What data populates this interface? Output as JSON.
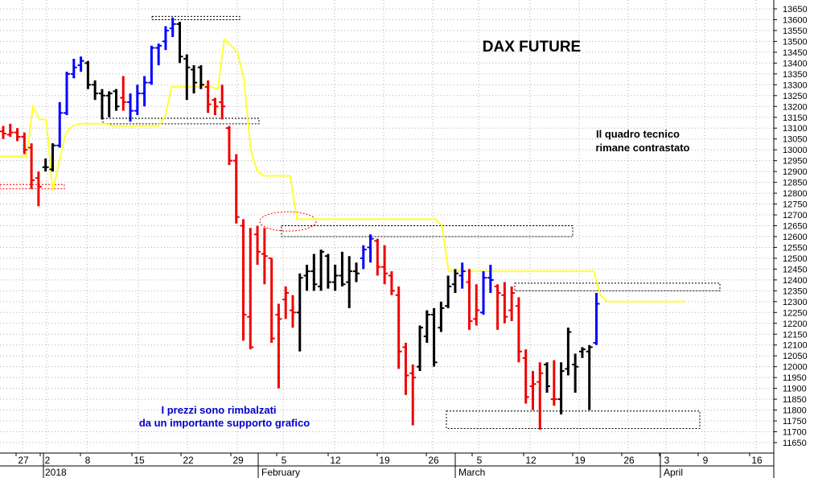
{
  "chart_data": {
    "type": "ohlc",
    "title": "DAX FUTURE",
    "annotations": {
      "top_right": [
        "Il quadro tecnico",
        "rimane contrastato"
      ],
      "bottom_left": [
        "I prezzi sono rimbalzati",
        "da un importante supporto grafico"
      ]
    },
    "y_axis": {
      "position": "right",
      "min": 11650,
      "max": 13650,
      "step": 50,
      "ticks": [
        "13650",
        "13600",
        "13550",
        "13500",
        "13450",
        "13400",
        "13350",
        "13300",
        "13250",
        "13200",
        "13150",
        "13100",
        "13050",
        "13000",
        "12950",
        "12900",
        "12850",
        "12800",
        "12750",
        "12700",
        "12650",
        "12600",
        "12550",
        "12500",
        "12450",
        "12400",
        "12350",
        "12300",
        "12250",
        "12200",
        "12150",
        "12100",
        "12050",
        "12000",
        "11950",
        "11900",
        "11850",
        "11800",
        "11750",
        "11700",
        "11650"
      ]
    },
    "x_axis": {
      "day_ticks": [
        "27",
        "2",
        "8",
        "15",
        "22",
        "29",
        "5",
        "12",
        "19",
        "26",
        "5",
        "12",
        "19",
        "26",
        "3",
        "9",
        "16"
      ],
      "month_labels": [
        "2018",
        "February",
        "March",
        "April"
      ]
    },
    "colors": {
      "up": "#0000ff",
      "down": "#ee0000",
      "neutral": "#000000",
      "moving_line": "#ffff33",
      "grid": "#b0b0b0",
      "box": "#000000",
      "ellipse": "#ff0000",
      "note": "#0000cc"
    },
    "bars": [
      {
        "c": "r",
        "o": 13085,
        "h": 13110,
        "l": 13050,
        "cl": 13075
      },
      {
        "c": "r",
        "o": 13070,
        "h": 13120,
        "l": 13060,
        "cl": 13080
      },
      {
        "c": "r",
        "o": 13080,
        "h": 13100,
        "l": 13040,
        "cl": 13060
      },
      {
        "c": "r",
        "o": 13060,
        "h": 13080,
        "l": 12980,
        "cl": 13000
      },
      {
        "c": "r",
        "o": 13010,
        "h": 13030,
        "l": 12820,
        "cl": 12860
      },
      {
        "c": "r",
        "o": 12870,
        "h": 12900,
        "l": 12740,
        "cl": 12830
      },
      {
        "c": "k",
        "o": 12920,
        "h": 12960,
        "l": 12900,
        "cl": 12920
      },
      {
        "c": "k",
        "o": 12910,
        "h": 13030,
        "l": 12900,
        "cl": 13020
      },
      {
        "c": "b",
        "o": 13020,
        "h": 13220,
        "l": 13010,
        "cl": 13170
      },
      {
        "c": "b",
        "o": 13170,
        "h": 13360,
        "l": 13160,
        "cl": 13350
      },
      {
        "c": "b",
        "o": 13350,
        "h": 13420,
        "l": 13330,
        "cl": 13380
      },
      {
        "c": "b",
        "o": 13390,
        "h": 13430,
        "l": 13360,
        "cl": 13410
      },
      {
        "c": "k",
        "o": 13400,
        "h": 13410,
        "l": 13280,
        "cl": 13300
      },
      {
        "c": "k",
        "o": 13300,
        "h": 13320,
        "l": 13230,
        "cl": 13260
      },
      {
        "c": "k",
        "o": 13260,
        "h": 13280,
        "l": 13140,
        "cl": 13250
      },
      {
        "c": "k",
        "o": 13250,
        "h": 13270,
        "l": 13150,
        "cl": 13260
      },
      {
        "c": "k",
        "o": 13270,
        "h": 13280,
        "l": 13180,
        "cl": 13200
      },
      {
        "c": "r",
        "o": 13240,
        "h": 13340,
        "l": 13180,
        "cl": 13220
      },
      {
        "c": "b",
        "o": 13220,
        "h": 13260,
        "l": 13130,
        "cl": 13180
      },
      {
        "c": "b",
        "o": 13180,
        "h": 13300,
        "l": 13160,
        "cl": 13260
      },
      {
        "c": "b",
        "o": 13260,
        "h": 13340,
        "l": 13200,
        "cl": 13310
      },
      {
        "c": "b",
        "o": 13310,
        "h": 13480,
        "l": 13300,
        "cl": 13470
      },
      {
        "c": "b",
        "o": 13470,
        "h": 13490,
        "l": 13390,
        "cl": 13480
      },
      {
        "c": "b",
        "o": 13500,
        "h": 13570,
        "l": 13460,
        "cl": 13550
      },
      {
        "c": "b",
        "o": 13560,
        "h": 13610,
        "l": 13520,
        "cl": 13580
      },
      {
        "c": "k",
        "o": 13580,
        "h": 13590,
        "l": 13400,
        "cl": 13430
      },
      {
        "c": "k",
        "o": 13420,
        "h": 13440,
        "l": 13230,
        "cl": 13380
      },
      {
        "c": "k",
        "o": 13370,
        "h": 13390,
        "l": 13260,
        "cl": 13310
      },
      {
        "c": "k",
        "o": 13380,
        "h": 13390,
        "l": 13280,
        "cl": 13300
      },
      {
        "c": "r",
        "o": 13290,
        "h": 13320,
        "l": 13170,
        "cl": 13210
      },
      {
        "c": "r",
        "o": 13230,
        "h": 13240,
        "l": 13160,
        "cl": 13200
      },
      {
        "c": "r",
        "o": 13220,
        "h": 13300,
        "l": 13140,
        "cl": 13200
      },
      {
        "c": "r",
        "o": 13100,
        "h": 13110,
        "l": 12930,
        "cl": 12950
      },
      {
        "c": "r",
        "o": 12950,
        "h": 12980,
        "l": 12660,
        "cl": 12690
      },
      {
        "c": "r",
        "o": 12650,
        "h": 12680,
        "l": 12120,
        "cl": 12240
      },
      {
        "c": "r",
        "o": 12230,
        "h": 12640,
        "l": 12080,
        "cl": 12090
      },
      {
        "c": "r",
        "o": 12610,
        "h": 12650,
        "l": 12470,
        "cl": 12530
      },
      {
        "c": "r",
        "o": 12520,
        "h": 12640,
        "l": 12380,
        "cl": 12510
      },
      {
        "c": "r",
        "o": 12500,
        "h": 12500,
        "l": 12110,
        "cl": 12130
      },
      {
        "c": "r",
        "o": 12240,
        "h": 12290,
        "l": 11900,
        "cl": 12220
      },
      {
        "c": "r",
        "o": 12310,
        "h": 12370,
        "l": 12220,
        "cl": 12340
      },
      {
        "c": "r",
        "o": 12260,
        "h": 12330,
        "l": 12180,
        "cl": 12250
      },
      {
        "c": "k",
        "o": 12250,
        "h": 12430,
        "l": 12070,
        "cl": 12410
      },
      {
        "c": "k",
        "o": 12420,
        "h": 12470,
        "l": 12350,
        "cl": 12440
      },
      {
        "c": "k",
        "o": 12440,
        "h": 12520,
        "l": 12350,
        "cl": 12380
      },
      {
        "c": "k",
        "o": 12370,
        "h": 12540,
        "l": 12350,
        "cl": 12530
      },
      {
        "c": "k",
        "o": 12510,
        "h": 12520,
        "l": 12360,
        "cl": 12390
      },
      {
        "c": "k",
        "o": 12390,
        "h": 12470,
        "l": 12350,
        "cl": 12420
      },
      {
        "c": "k",
        "o": 12420,
        "h": 12530,
        "l": 12370,
        "cl": 12380
      },
      {
        "c": "k",
        "o": 12390,
        "h": 12510,
        "l": 12270,
        "cl": 12440
      },
      {
        "c": "k",
        "o": 12440,
        "h": 12480,
        "l": 12390,
        "cl": 12430
      },
      {
        "c": "b",
        "o": 12500,
        "h": 12560,
        "l": 12450,
        "cl": 12540
      },
      {
        "c": "b",
        "o": 12550,
        "h": 12610,
        "l": 12480,
        "cl": 12590
      },
      {
        "c": "r",
        "o": 12580,
        "h": 12590,
        "l": 12420,
        "cl": 12460
      },
      {
        "c": "r",
        "o": 12460,
        "h": 12560,
        "l": 12380,
        "cl": 12430
      },
      {
        "c": "r",
        "o": 12420,
        "h": 12440,
        "l": 12330,
        "cl": 12350
      },
      {
        "c": "r",
        "o": 12330,
        "h": 12370,
        "l": 11990,
        "cl": 12070
      },
      {
        "c": "r",
        "o": 12090,
        "h": 12110,
        "l": 11870,
        "cl": 11960
      },
      {
        "c": "r",
        "o": 11970,
        "h": 12010,
        "l": 11730,
        "cl": 11950
      },
      {
        "c": "k",
        "o": 12000,
        "h": 12190,
        "l": 11980,
        "cl": 12180
      },
      {
        "c": "k",
        "o": 12140,
        "h": 12260,
        "l": 12110,
        "cl": 12240
      },
      {
        "c": "k",
        "o": 12240,
        "h": 12270,
        "l": 12000,
        "cl": 12020
      },
      {
        "c": "k",
        "o": 12180,
        "h": 12300,
        "l": 12160,
        "cl": 12270
      },
      {
        "c": "k",
        "o": 12280,
        "h": 12420,
        "l": 12270,
        "cl": 12370
      },
      {
        "c": "k",
        "o": 12380,
        "h": 12450,
        "l": 12340,
        "cl": 12430
      },
      {
        "c": "b",
        "o": 12420,
        "h": 12480,
        "l": 12360,
        "cl": 12440
      },
      {
        "c": "r",
        "o": 12390,
        "h": 12450,
        "l": 12170,
        "cl": 12210
      },
      {
        "c": "r",
        "o": 12220,
        "h": 12380,
        "l": 12190,
        "cl": 12260
      },
      {
        "c": "b",
        "o": 12250,
        "h": 12440,
        "l": 12240,
        "cl": 12410
      },
      {
        "c": "b",
        "o": 12410,
        "h": 12470,
        "l": 12340,
        "cl": 12400
      },
      {
        "c": "r",
        "o": 12370,
        "h": 12380,
        "l": 12170,
        "cl": 12340
      },
      {
        "c": "r",
        "o": 12330,
        "h": 12390,
        "l": 12200,
        "cl": 12230
      },
      {
        "c": "r",
        "o": 12260,
        "h": 12370,
        "l": 12210,
        "cl": 12340
      },
      {
        "c": "r",
        "o": 12280,
        "h": 12320,
        "l": 12020,
        "cl": 12070
      },
      {
        "c": "r",
        "o": 12040,
        "h": 12080,
        "l": 11830,
        "cl": 11860
      },
      {
        "c": "r",
        "o": 11910,
        "h": 11980,
        "l": 11800,
        "cl": 11920
      },
      {
        "c": "r",
        "o": 11930,
        "h": 12020,
        "l": 11710,
        "cl": 11970
      },
      {
        "c": "k",
        "o": 12010,
        "h": 12020,
        "l": 11880,
        "cl": 11910
      },
      {
        "c": "r",
        "o": 11850,
        "h": 12030,
        "l": 11820,
        "cl": 11850
      },
      {
        "c": "k",
        "o": 11850,
        "h": 12020,
        "l": 11780,
        "cl": 11980
      },
      {
        "c": "k",
        "o": 11990,
        "h": 12180,
        "l": 11960,
        "cl": 12160
      },
      {
        "c": "k",
        "o": 12010,
        "h": 12060,
        "l": 11880,
        "cl": 12000
      },
      {
        "c": "k",
        "o": 12070,
        "h": 12090,
        "l": 12040,
        "cl": 12080
      },
      {
        "c": "k",
        "o": 12070,
        "h": 12100,
        "l": 11800,
        "cl": 12090
      },
      {
        "c": "b",
        "o": 12110,
        "h": 12340,
        "l": 12100,
        "cl": 12290
      }
    ],
    "moving_line": [
      12970,
      12970,
      12970,
      12970,
      12970,
      13200,
      13140,
      13140,
      12810,
      12950,
      13080,
      13110,
      13120,
      13120,
      13120,
      13120,
      13120,
      13110,
      13110,
      13110,
      13110,
      13110,
      13110,
      13110,
      13110,
      13150,
      13290,
      13290,
      13290,
      13290,
      13290,
      13300,
      13290,
      13280,
      13510,
      13480,
      13450,
      13320,
      13000,
      12900,
      12880,
      12880,
      12880,
      12880,
      12880,
      12680,
      12680,
      12680,
      12680,
      12680,
      12680,
      12680,
      12680,
      12680,
      12680,
      12680,
      12680,
      12680,
      12680,
      12680,
      12680,
      12680,
      12680,
      12680,
      12680,
      12680,
      12680,
      12650,
      12440,
      12440,
      12440,
      12440,
      12440,
      12440,
      12440,
      12440,
      12440,
      12440,
      12440,
      12440,
      12440,
      12440,
      12440,
      12440,
      12440,
      12440,
      12440,
      12440,
      12440,
      12440,
      12440,
      12330,
      12300,
      12300,
      12300,
      12300,
      12300,
      12300,
      12300,
      12300,
      12300,
      12300,
      12300,
      12300,
      12300
    ]
  }
}
